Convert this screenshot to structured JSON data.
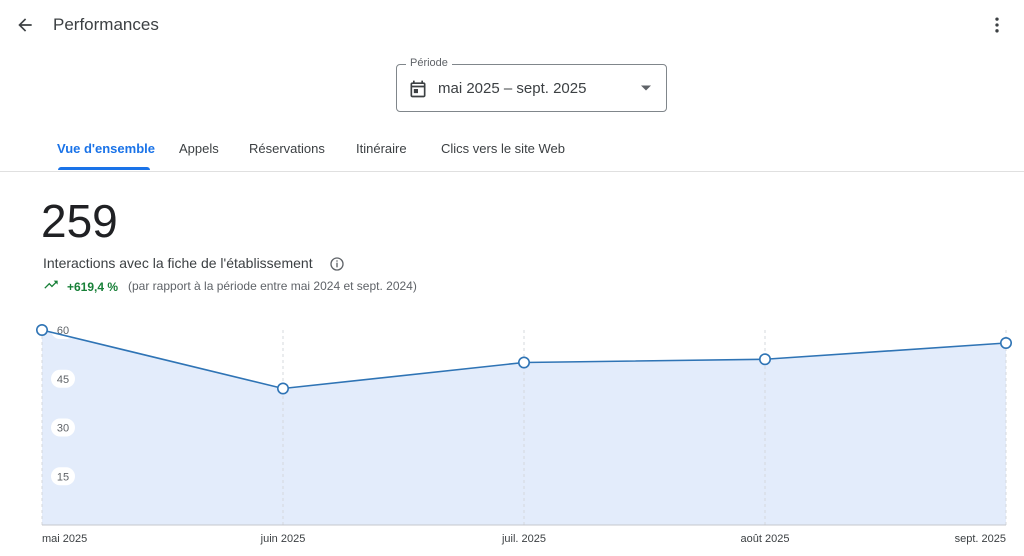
{
  "header": {
    "title": "Performances",
    "back_icon": "arrow-back-icon",
    "more_icon": "more-vert-icon"
  },
  "period": {
    "label": "Période",
    "value": "mai 2025 – sept. 2025"
  },
  "tabs": [
    {
      "label": "Vue d'ensemble",
      "active": true
    },
    {
      "label": "Appels"
    },
    {
      "label": "Réservations"
    },
    {
      "label": "Itinéraire"
    },
    {
      "label": "Clics vers le site Web"
    }
  ],
  "metric": {
    "value": "259",
    "label": "Interactions avec la fiche de l'établissement",
    "change": "+619,4 %",
    "comparison": "(par rapport à la période entre mai 2024 et sept. 2024)"
  },
  "colors": {
    "accent": "#1a73e8",
    "line": "#2f74b5",
    "area": "#e3ecfb",
    "positive": "#188038"
  },
  "chart_data": {
    "type": "area",
    "categories": [
      "mai 2025",
      "juin 2025",
      "juil. 2025",
      "août 2025",
      "sept. 2025"
    ],
    "values": [
      60,
      42,
      50,
      51,
      56
    ],
    "ylim": [
      0,
      60
    ],
    "yticks": [
      "15",
      "30",
      "45",
      "60"
    ],
    "grid": "vertical-dashed"
  }
}
